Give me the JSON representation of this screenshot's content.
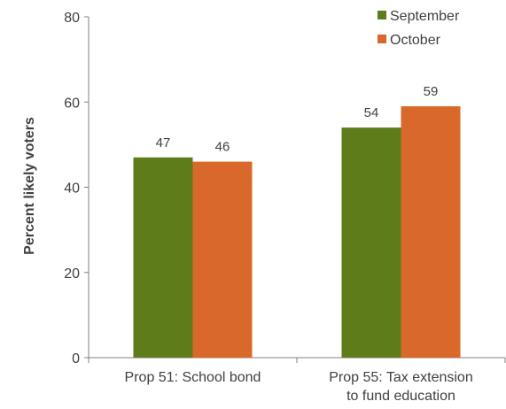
{
  "chart_data": {
    "type": "bar",
    "categories": [
      [
        "Prop 51: School bond"
      ],
      [
        "Prop 55: Tax extension",
        "to fund education"
      ]
    ],
    "series": [
      {
        "name": "September",
        "values": [
          47,
          54
        ],
        "color": "#5f7c1a"
      },
      {
        "name": "October",
        "values": [
          46,
          59
        ],
        "color": "#d9692a"
      }
    ],
    "ylabel": "Percent likely voters",
    "xlabel": "",
    "ylim": [
      0,
      80
    ],
    "yticks": [
      0,
      20,
      40,
      60,
      80
    ],
    "data_labels": true,
    "grid": false,
    "legend_position": "top-right"
  }
}
